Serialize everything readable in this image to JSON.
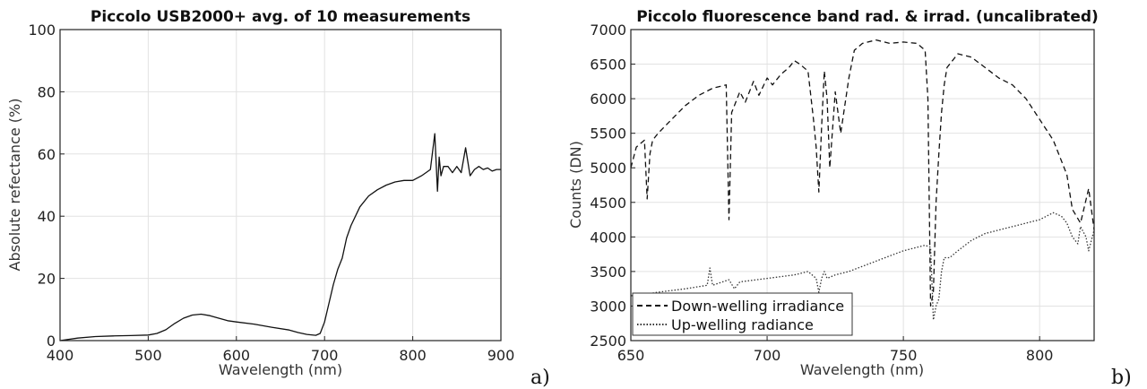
{
  "chart_data": [
    {
      "type": "line",
      "title": "Piccolo USB2000+ avg. of 10 measurements",
      "xlabel": "Wavelength (nm)",
      "ylabel": "Absolute refectance (%)",
      "xlim": [
        400,
        900
      ],
      "ylim": [
        0,
        100
      ],
      "xticks": [
        400,
        500,
        600,
        700,
        800,
        900
      ],
      "yticks": [
        0,
        20,
        40,
        60,
        80,
        100
      ],
      "grid": true,
      "panel_label": "a)",
      "series": [
        {
          "color": "#111111",
          "dash": "solid",
          "x": [
            400,
            420,
            440,
            460,
            480,
            500,
            510,
            520,
            530,
            540,
            550,
            560,
            570,
            580,
            590,
            600,
            620,
            640,
            660,
            670,
            680,
            690,
            695,
            700,
            705,
            710,
            715,
            720,
            725,
            730,
            740,
            750,
            760,
            770,
            780,
            790,
            800,
            810,
            815,
            820,
            825,
            828,
            830,
            832,
            835,
            840,
            845,
            850,
            855,
            860,
            865,
            870,
            875,
            880,
            885,
            890,
            895,
            900
          ],
          "values": [
            0,
            0.8,
            1.3,
            1.5,
            1.6,
            1.8,
            2.3,
            3.5,
            5.5,
            7.2,
            8.2,
            8.5,
            8.0,
            7.2,
            6.4,
            6.0,
            5.3,
            4.3,
            3.4,
            2.6,
            2.0,
            1.7,
            2.3,
            6.0,
            12.0,
            18.0,
            23.0,
            26.5,
            33.0,
            37.0,
            43.0,
            46.5,
            48.5,
            50.0,
            51.0,
            51.5,
            51.5,
            53.0,
            54.0,
            55.0,
            66.5,
            48.0,
            59.0,
            53.0,
            56.0,
            56.0,
            54.0,
            56.0,
            54.0,
            62.0,
            53.0,
            55.0,
            56.0,
            55.0,
            55.5,
            54.5,
            55.0,
            55.0
          ]
        }
      ]
    },
    {
      "type": "line",
      "title": "Piccolo fluorescence band rad. & irrad. (uncalibrated)",
      "xlabel": "Wavelength (nm)",
      "ylabel": "Counts (DN)",
      "xlim": [
        650,
        820
      ],
      "ylim": [
        2500,
        7000
      ],
      "xticks": [
        650,
        700,
        750,
        800
      ],
      "yticks": [
        2500,
        3000,
        3500,
        4000,
        4500,
        5000,
        5500,
        6000,
        6500,
        7000
      ],
      "grid": true,
      "legend_position": "bottom-left",
      "panel_label": "b)",
      "series": [
        {
          "name": "Down-welling irradiance",
          "color": "#111111",
          "dash": "dashed",
          "x": [
            650,
            652,
            655,
            656,
            657,
            658,
            660,
            665,
            670,
            675,
            680,
            685,
            686,
            687,
            688,
            690,
            692,
            695,
            697,
            700,
            702,
            705,
            708,
            710,
            712,
            715,
            717,
            718,
            719,
            720,
            721,
            722,
            723,
            725,
            727,
            730,
            732,
            735,
            740,
            745,
            750,
            755,
            758,
            759,
            760,
            761,
            762,
            763,
            764,
            765,
            766,
            768,
            770,
            775,
            780,
            785,
            790,
            795,
            800,
            805,
            810,
            812,
            815,
            818,
            820
          ],
          "values": [
            5000,
            5300,
            5400,
            4550,
            5200,
            5400,
            5500,
            5700,
            5900,
            6050,
            6150,
            6200,
            4250,
            5800,
            5900,
            6100,
            5950,
            6250,
            6050,
            6300,
            6200,
            6350,
            6450,
            6550,
            6500,
            6400,
            5700,
            5300,
            4650,
            5600,
            6400,
            6000,
            5000,
            6100,
            5500,
            6300,
            6700,
            6800,
            6850,
            6800,
            6820,
            6800,
            6700,
            6000,
            3000,
            3200,
            4500,
            5200,
            5800,
            6200,
            6450,
            6550,
            6650,
            6600,
            6450,
            6300,
            6200,
            6000,
            5700,
            5400,
            4900,
            4400,
            4200,
            4700,
            4100
          ]
        },
        {
          "name": "Up-welling radiance",
          "color": "#333333",
          "dash": "dotted",
          "x": [
            650,
            652,
            660,
            670,
            678,
            679,
            680,
            686,
            688,
            690,
            700,
            710,
            715,
            718,
            719,
            720,
            721,
            722,
            725,
            730,
            740,
            750,
            755,
            758,
            760,
            761,
            762,
            763,
            764,
            765,
            767,
            770,
            775,
            780,
            790,
            800,
            805,
            808,
            810,
            812,
            814,
            815,
            817,
            818,
            820
          ],
          "values": [
            3150,
            3150,
            3200,
            3250,
            3300,
            3550,
            3300,
            3380,
            3250,
            3350,
            3400,
            3450,
            3500,
            3400,
            3200,
            3400,
            3500,
            3400,
            3450,
            3500,
            3650,
            3800,
            3850,
            3880,
            3850,
            2800,
            3000,
            3100,
            3500,
            3700,
            3700,
            3800,
            3950,
            4050,
            4150,
            4250,
            4350,
            4300,
            4200,
            4000,
            3900,
            4150,
            4000,
            3800,
            4100
          ]
        }
      ]
    }
  ]
}
